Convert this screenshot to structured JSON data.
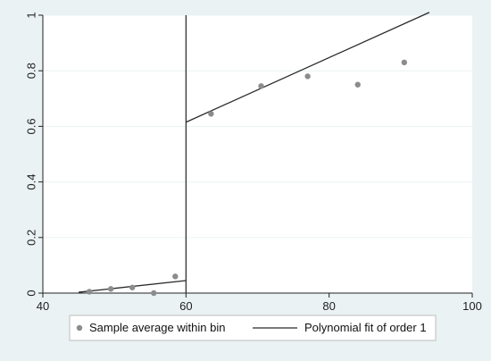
{
  "chart_data": {
    "type": "scatter",
    "title": "",
    "xlabel": "",
    "ylabel": "",
    "xlim": [
      40,
      100
    ],
    "ylim": [
      0,
      1
    ],
    "xticks": [
      40,
      60,
      80,
      100
    ],
    "yticks": [
      0,
      0.2,
      0.4,
      0.6,
      0.8,
      1
    ],
    "x_tick_labels": [
      "40",
      "60",
      "80",
      "100"
    ],
    "y_tick_labels": [
      "0",
      "0.2",
      "0.4",
      "0.6",
      "0.8",
      "1"
    ],
    "grid": true,
    "cutoff": 60,
    "series": [
      {
        "name": "Sample average within bin",
        "kind": "scatter",
        "color": "#8c8c8c",
        "x": [
          46.5,
          49.5,
          52.5,
          55.5,
          58.5,
          63.5,
          70.5,
          77,
          84,
          90.5
        ],
        "y": [
          0.005,
          0.015,
          0.02,
          0.0,
          0.06,
          0.645,
          0.745,
          0.78,
          0.75,
          0.83
        ]
      },
      {
        "name": "Polynomial fit of order 1",
        "kind": "line",
        "color": "#2a2a2a",
        "segments": [
          {
            "x": [
              45,
              60
            ],
            "y": [
              0.003,
              0.045
            ]
          },
          {
            "x": [
              60,
              94
            ],
            "y": [
              0.615,
              1.01
            ]
          }
        ]
      }
    ],
    "legend": {
      "position": "bottom",
      "entries": [
        "Sample average within bin",
        "Polynomial fit of order 1"
      ]
    },
    "colors": {
      "outer_background": "#eaf2f3",
      "plot_background": "#ffffff",
      "grid": "#eaf2f3",
      "axis": "#222222"
    }
  }
}
